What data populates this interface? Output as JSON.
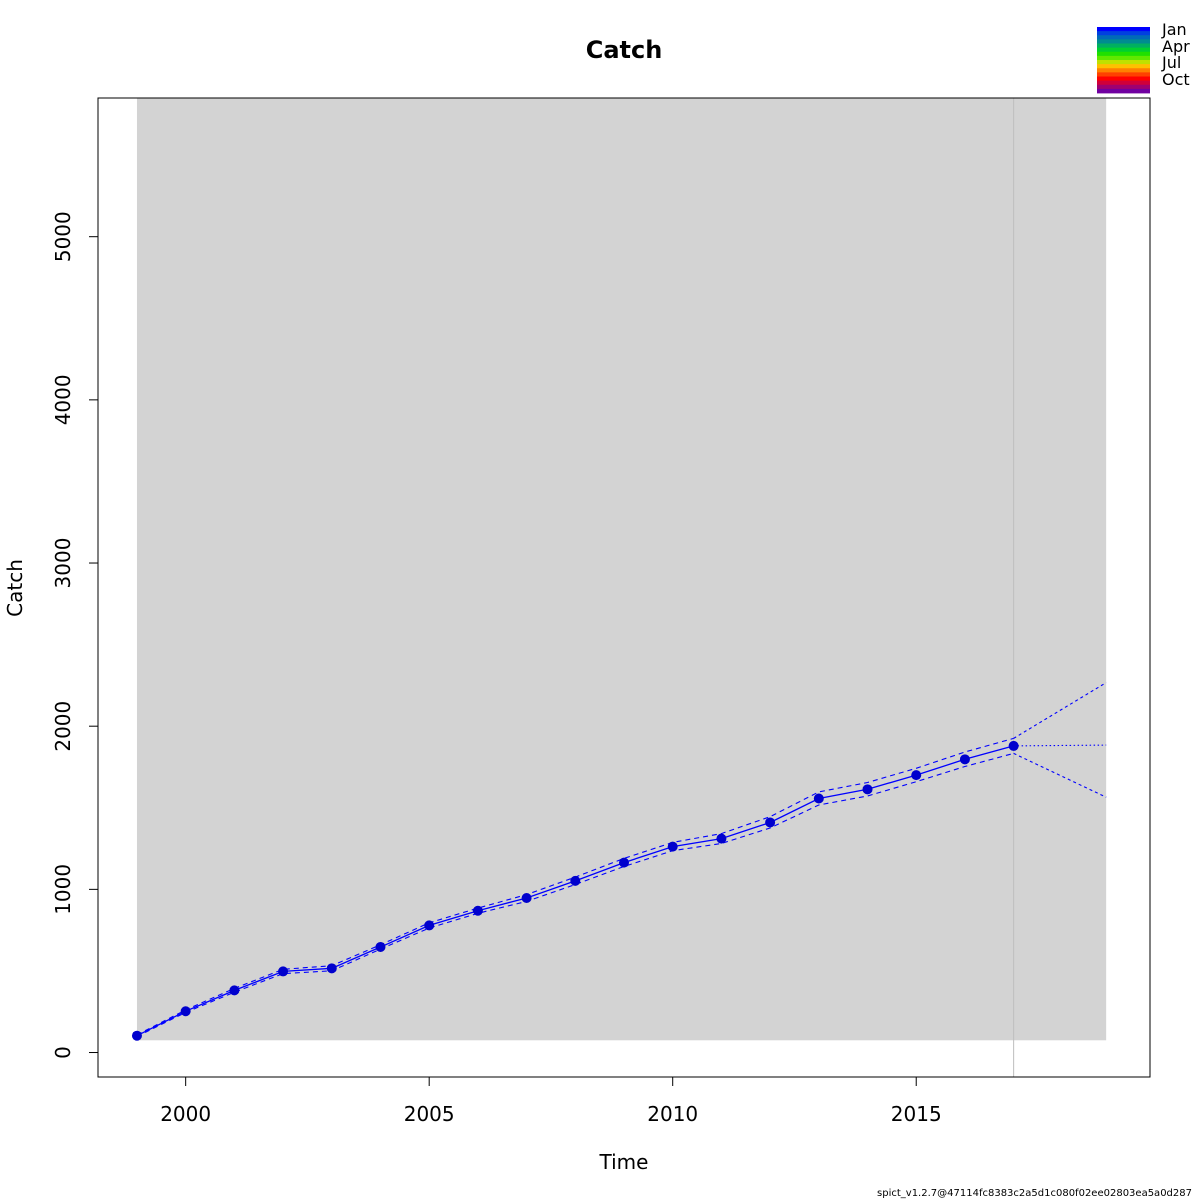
{
  "chart_data": {
    "type": "line",
    "title": "Catch",
    "xlabel": "Time",
    "ylabel": "Catch",
    "xlim": [
      1998.2,
      2019.8
    ],
    "ylim": [
      -150,
      5850
    ],
    "x_ticks": [
      2000,
      2005,
      2010,
      2015
    ],
    "y_ticks": [
      0,
      1000,
      2000,
      3000,
      4000,
      5000
    ],
    "shaded_region": {
      "x": [
        1999,
        2018.9
      ],
      "y": [
        75,
        5850
      ],
      "color": "#d3d3d3"
    },
    "forecast_start": 2017,
    "series": [
      {
        "name": "",
        "role": "observed",
        "color": "#0000cd",
        "style": "points",
        "x": [
          1999,
          2000,
          2001,
          2002,
          2003,
          2004,
          2005,
          2006,
          2007,
          2008,
          2009,
          2010,
          2011,
          2012,
          2013,
          2014,
          2015,
          2016,
          2017
        ],
        "y": [
          103,
          253,
          381,
          497,
          516,
          647,
          779,
          869,
          947,
          1052,
          1164,
          1262,
          1311,
          1410,
          1557,
          1613,
          1700,
          1797,
          1879
        ]
      },
      {
        "name": "",
        "role": "estimate",
        "color": "#0000ff",
        "style": "solid",
        "x": [
          1999,
          2000,
          2001,
          2002,
          2003,
          2004,
          2005,
          2006,
          2007,
          2008,
          2009,
          2010,
          2011,
          2012,
          2013,
          2014,
          2015,
          2016,
          2017
        ],
        "y": [
          103,
          253,
          381,
          497,
          516,
          647,
          779,
          869,
          947,
          1052,
          1164,
          1262,
          1311,
          1410,
          1557,
          1613,
          1700,
          1797,
          1879
        ]
      },
      {
        "name": "",
        "role": "upper-ci",
        "color": "#0000ff",
        "style": "dashed",
        "x": [
          1999,
          2000,
          2001,
          2002,
          2003,
          2004,
          2005,
          2006,
          2007,
          2008,
          2009,
          2010,
          2011,
          2012,
          2013,
          2014,
          2015,
          2016,
          2017
        ],
        "y": [
          108,
          261,
          393,
          510,
          532,
          660,
          795,
          885,
          968,
          1075,
          1190,
          1288,
          1342,
          1445,
          1597,
          1655,
          1742,
          1842,
          1925
        ]
      },
      {
        "name": "",
        "role": "lower-ci",
        "color": "#0000ff",
        "style": "dashed",
        "x": [
          1999,
          2000,
          2001,
          2002,
          2003,
          2004,
          2005,
          2006,
          2007,
          2008,
          2009,
          2010,
          2011,
          2012,
          2013,
          2014,
          2015,
          2016,
          2017
        ],
        "y": [
          98,
          246,
          370,
          484,
          501,
          634,
          763,
          853,
          926,
          1030,
          1140,
          1237,
          1281,
          1376,
          1517,
          1572,
          1660,
          1753,
          1833
        ]
      },
      {
        "name": "",
        "role": "forecast",
        "color": "#0000ff",
        "style": "dotted",
        "x": [
          2017,
          2018.9
        ],
        "y": [
          1879,
          1884
        ]
      },
      {
        "name": "",
        "role": "forecast-upper",
        "color": "#0000ff",
        "style": "fine-dashed",
        "x": [
          2017,
          2018.9
        ],
        "y": [
          1925,
          2267
        ]
      },
      {
        "name": "",
        "role": "forecast-lower",
        "color": "#0000ff",
        "style": "fine-dashed",
        "x": [
          2017,
          2018.9
        ],
        "y": [
          1833,
          1565
        ]
      }
    ],
    "legend": {
      "placement": "top-right",
      "labels": [
        "Jan",
        "Apr",
        "Jul",
        "Oct"
      ],
      "colors": [
        "#0000ff",
        "#0040e0",
        "#006ab8",
        "#008c90",
        "#00b060",
        "#00d030",
        "#20e000",
        "#60e800",
        "#c0e000",
        "#ffc000",
        "#ff8000",
        "#ff4000",
        "#ff0000",
        "#d0003a",
        "#a00070",
        "#7000a0"
      ]
    },
    "footnote": "spict_v1.2.7@47114fc8383c2a5d1c080f02ee02803ea5a0d287"
  }
}
